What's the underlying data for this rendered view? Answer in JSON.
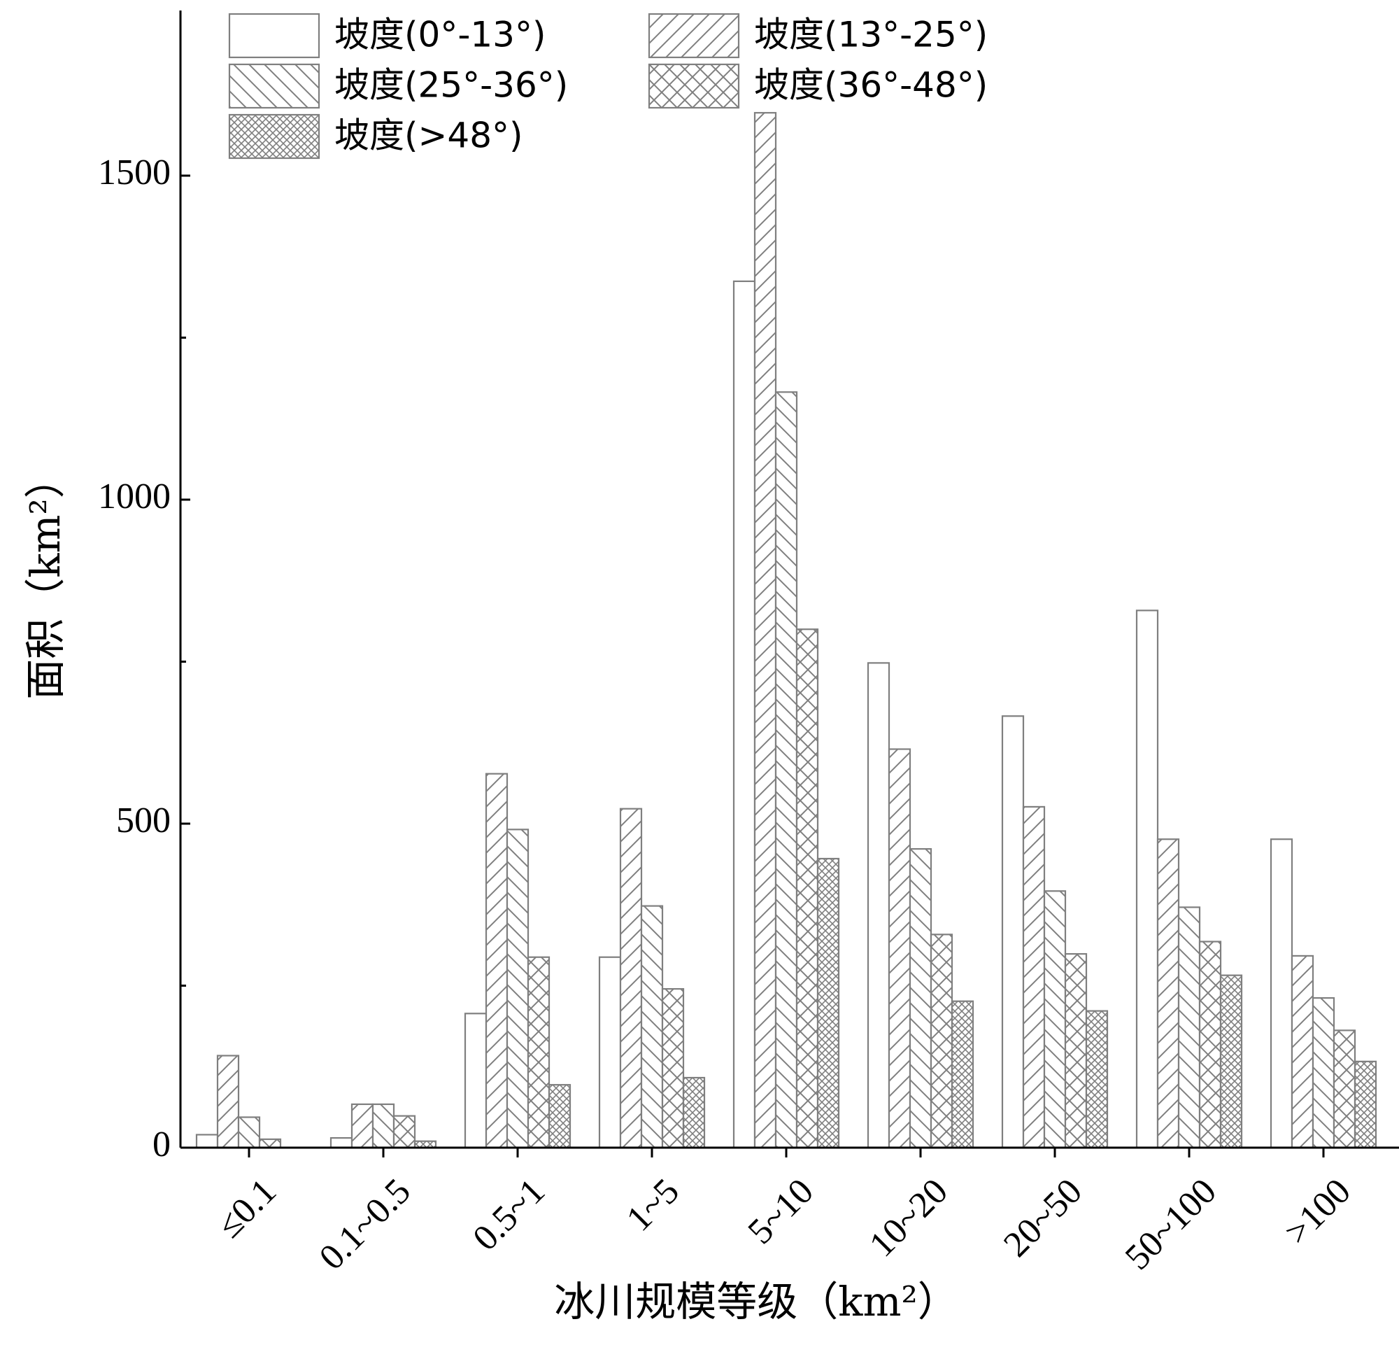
{
  "chart_data": {
    "type": "bar",
    "xlabel": "冰川规模等级（km²）",
    "ylabel": "面积（km²）",
    "ylim": [
      0,
      1700
    ],
    "yticks": [
      "0",
      "500",
      "1000",
      "1500"
    ],
    "grid": false,
    "legend_position": "top-left",
    "categories": [
      "≤0.1",
      "0.1~0.5",
      "0.5~1",
      "1~5",
      "5~10",
      "10~20",
      "20~50",
      "50~100",
      ">100"
    ],
    "series": [
      {
        "name": "坡度(0°-13°)",
        "pattern": "none",
        "values": [
          20,
          15,
          207,
          294,
          1337,
          748,
          666,
          829,
          476
        ]
      },
      {
        "name": "坡度(13°-25°)",
        "pattern": "diag-up",
        "values": [
          142,
          67,
          577,
          523,
          1597,
          615,
          526,
          476,
          296
        ]
      },
      {
        "name": "坡度(25°-36°)",
        "pattern": "diag-down",
        "values": [
          47,
          67,
          491,
          373,
          1166,
          461,
          396,
          371,
          231
        ]
      },
      {
        "name": "坡度(36°-48°)",
        "pattern": "cross",
        "values": [
          13,
          49,
          294,
          245,
          800,
          329,
          299,
          318,
          181
        ]
      },
      {
        "name": "坡度(>48°)",
        "pattern": "dense-cross",
        "values": [
          0,
          10,
          97,
          108,
          446,
          226,
          211,
          266,
          133
        ]
      }
    ],
    "colors": {
      "stroke": "#7f7f7f",
      "axis": "#000000",
      "fill": "#ffffff"
    }
  }
}
